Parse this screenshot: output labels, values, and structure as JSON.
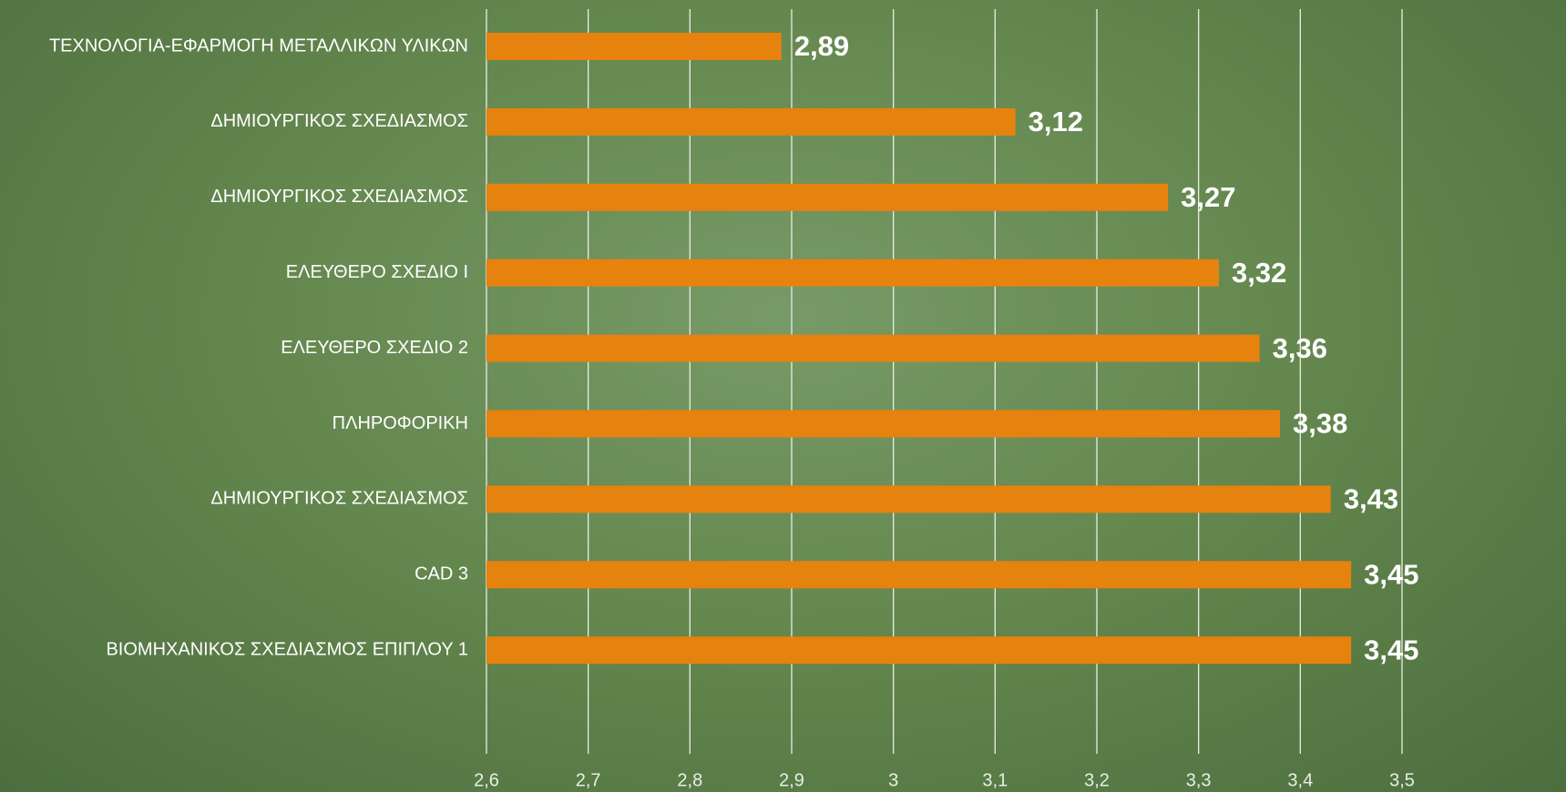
{
  "chart_data": {
    "type": "barh",
    "categories": [
      "ΤΕΧΝΟΛΟΓΙΑ-ΕΦΑΡΜΟΓΗ ΜΕΤΑΛΛΙΚΩΝ ΥΛΙΚΩΝ",
      "ΔΗΜΙΟΥΡΓΙΚΟΣ ΣΧΕΔΙΑΣΜΟΣ",
      "ΔΗΜΙΟΥΡΓΙΚΟΣ ΣΧΕΔΙΑΣΜΟΣ",
      "ΕΛΕΥΘΕΡΟ ΣΧΕΔΙΟ Ι",
      "ΕΛΕΥΘΕΡΟ ΣΧΕΔΙΟ 2",
      "ΠΛΗΡΟΦΟΡΙΚΗ",
      "ΔΗΜΙΟΥΡΓΙΚΟΣ ΣΧΕΔΙΑΣΜΟΣ",
      "CAD 3",
      "ΒΙΟΜΗΧΑΝΙΚΟΣ ΣΧΕΔΙΑΣΜΟΣ ΕΠΙΠΛΟΥ 1"
    ],
    "values": [
      2.89,
      3.12,
      3.27,
      3.32,
      3.36,
      3.38,
      3.43,
      3.45,
      3.45
    ],
    "value_labels": [
      "2,89",
      "3,12",
      "3,27",
      "3,32",
      "3,36",
      "3,38",
      "3,43",
      "3,45",
      "3,45"
    ],
    "color": "#e6820e",
    "xlim": [
      2.6,
      3.5
    ],
    "xticks": [
      {
        "value": 2.6,
        "label": "2,6"
      },
      {
        "value": 2.7,
        "label": "2,7"
      },
      {
        "value": 2.8,
        "label": "2,8"
      },
      {
        "value": 2.9,
        "label": "2,9"
      },
      3,
      {
        "value": 3.1,
        "label": "3,1"
      },
      {
        "value": 3.2,
        "label": "3,2"
      },
      {
        "value": 3.3,
        "label": "3,3"
      },
      {
        "value": 3.4,
        "label": "3,4"
      },
      {
        "value": 3.5,
        "label": "3,5"
      }
    ],
    "grid": true
  }
}
